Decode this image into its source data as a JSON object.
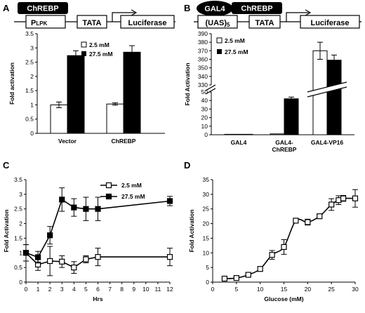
{
  "figure": {
    "panels": {
      "A": {
        "letter": "A",
        "construct": {
          "tf": "ChREBP",
          "promoter_main": "P",
          "promoter_sub": "LPK",
          "tata": "TATA",
          "reporter": "Luciferase"
        }
      },
      "B": {
        "letter": "B",
        "construct": {
          "dbd": "GAL4",
          "tf": "ChREBP",
          "uas_main": "(UAS)",
          "uas_sub": "5",
          "tata": "TATA",
          "reporter": "Luciferase"
        }
      },
      "C": {
        "letter": "C"
      },
      "D": {
        "letter": "D"
      }
    }
  },
  "chart_data": [
    {
      "id": "A",
      "type": "bar",
      "ylabel": "Fold activation",
      "xlabel": "",
      "ylim": [
        0,
        3.5
      ],
      "yticks": [
        "0",
        "0.5",
        "1",
        "1.5",
        "2",
        "2.5",
        "3",
        "3.5"
      ],
      "categories": [
        "Vector",
        "ChREBP"
      ],
      "series": [
        {
          "name": "2.5 mM",
          "color": "#ffffff",
          "values": [
            1.0,
            1.03
          ],
          "errors": [
            0.1,
            0.04
          ]
        },
        {
          "name": "27.5 mM",
          "color": "#000000",
          "values": [
            2.73,
            2.85
          ],
          "errors": [
            0.17,
            0.23
          ]
        }
      ],
      "legend": "top-center"
    },
    {
      "id": "B",
      "type": "bar",
      "ylabel": "Fold Activation",
      "xlabel": "",
      "y_axis_break": true,
      "ylim_lower": [
        0,
        50
      ],
      "ylim_upper": [
        330,
        390
      ],
      "yticks": [
        "0",
        "10",
        "20",
        "30",
        "40",
        "50",
        "330",
        "340",
        "350",
        "360",
        "370",
        "380",
        "390"
      ],
      "categories": [
        "GAL4",
        "GAL4-\nChREBP",
        "GAL4-VP16"
      ],
      "series": [
        {
          "name": "2.5 mM",
          "color": "#ffffff",
          "values": [
            0.5,
            1.0,
            370
          ],
          "errors": [
            0,
            0,
            10
          ]
        },
        {
          "name": "27.5 mM",
          "color": "#000000",
          "values": [
            0.5,
            42,
            359
          ],
          "errors": [
            0,
            2,
            6
          ]
        }
      ],
      "legend": "top-left"
    },
    {
      "id": "C",
      "type": "line",
      "ylabel": "Fold Activation",
      "xlabel": "Hrs",
      "xlim": [
        0,
        12
      ],
      "ylim": [
        0,
        3.5
      ],
      "xticks": [
        "0",
        "1",
        "2",
        "3",
        "4",
        "5",
        "6",
        "7",
        "8",
        "9",
        "10",
        "11",
        "12"
      ],
      "yticks": [
        "0",
        "0.5",
        "1",
        "1.5",
        "2",
        "2.5",
        "3",
        "3.5"
      ],
      "series": [
        {
          "name": "2.5 mM",
          "marker": "open-square",
          "x": [
            0,
            1,
            2,
            3,
            4,
            5,
            6,
            12
          ],
          "y": [
            1.0,
            0.6,
            0.72,
            0.7,
            0.5,
            0.78,
            0.86,
            0.86
          ],
          "err": [
            0.28,
            0.2,
            0.5,
            0.2,
            0.2,
            0.12,
            0.3,
            0.3
          ]
        },
        {
          "name": "27.5 mM",
          "marker": "filled-square",
          "x": [
            0,
            1,
            2,
            3,
            4,
            5,
            6,
            12
          ],
          "y": [
            1.0,
            0.85,
            1.6,
            2.82,
            2.55,
            2.5,
            2.5,
            2.77
          ],
          "err": [
            0.28,
            0.2,
            0.3,
            0.4,
            0.3,
            0.4,
            0.4,
            0.16
          ]
        }
      ],
      "legend": "top-right"
    },
    {
      "id": "D",
      "type": "line",
      "ylabel": "Fold Activation",
      "xlabel": "Glucose (mM)",
      "xlim": [
        0,
        30
      ],
      "ylim": [
        0,
        35
      ],
      "xticks": [
        "0",
        "5",
        "10",
        "15",
        "20",
        "25",
        "30"
      ],
      "yticks": [
        "0",
        "5",
        "10",
        "15",
        "20",
        "25",
        "30",
        "35"
      ],
      "series": [
        {
          "name": "",
          "marker": "open-square",
          "x": [
            2.5,
            5,
            7.5,
            10,
            12.5,
            15,
            17.5,
            20,
            22.5,
            25,
            26.5,
            27.5,
            30
          ],
          "y": [
            1.2,
            1.4,
            2.5,
            4.5,
            9.3,
            12.0,
            21.0,
            20.5,
            22.5,
            26.5,
            28.0,
            28.6,
            28.6
          ],
          "err": [
            0.3,
            0.4,
            0.5,
            0.8,
            1.5,
            2.5,
            0.5,
            1.0,
            0.5,
            2.0,
            1.5,
            1.0,
            3.0
          ]
        }
      ]
    }
  ]
}
